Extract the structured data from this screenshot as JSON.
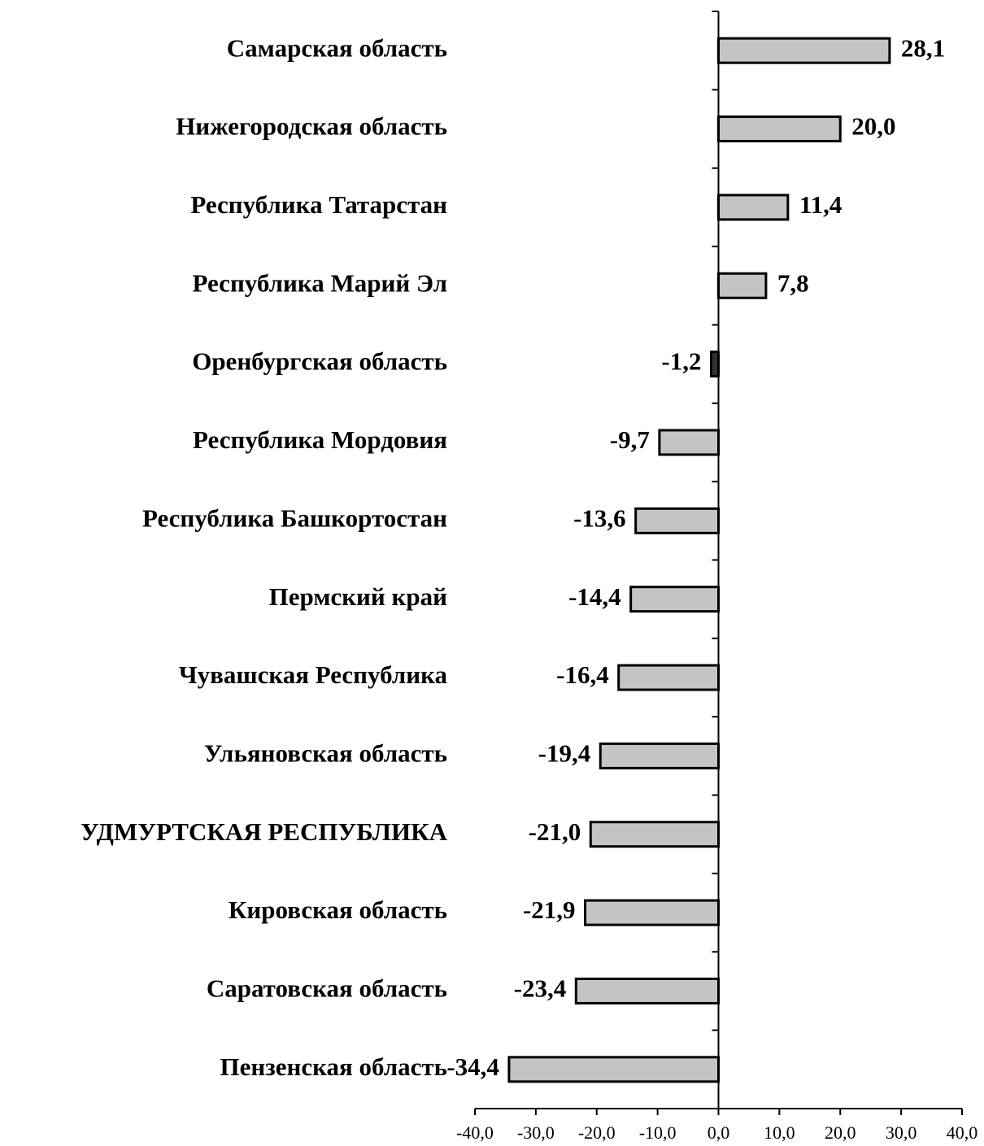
{
  "chart_data": {
    "type": "hbar",
    "categories": [
      "Самарская область",
      "Нижегородская область",
      "Республика Татарстан",
      "Республика Марий Эл",
      "Оренбургская область",
      "Республика Мордовия",
      "Республика Башкортостан",
      "Пермский край",
      "Чувашская Республика",
      "Ульяновская область",
      "УДМУРТСКАЯ РЕСПУБЛИКА",
      "Кировская область",
      "Саратовская область",
      "Пензенская область"
    ],
    "values": [
      28.1,
      20.0,
      11.4,
      7.8,
      -1.2,
      -9.7,
      -13.6,
      -14.4,
      -16.4,
      -19.4,
      -21.0,
      -21.9,
      -23.4,
      -34.4
    ],
    "value_labels": [
      "28,1",
      "20,0",
      "11,4",
      "7,8",
      "-1,2",
      "-9,7",
      "-13,6",
      "-14,4",
      "-16,4",
      "-19,4",
      "-21,0",
      "-21,9",
      "-23,4",
      "-34,4"
    ],
    "color": "#c4c4c4",
    "xlim": [
      -40,
      40
    ],
    "xticks": [
      {
        "value": -40,
        "label": "-40,0"
      },
      {
        "value": -30,
        "label": "-30,0"
      },
      {
        "value": -20,
        "label": "-20,0"
      },
      {
        "value": -10,
        "label": "-10,0"
      },
      {
        "value": 0,
        "label": "0,0"
      },
      {
        "value": 10,
        "label": "10,0"
      },
      {
        "value": 20,
        "label": "20,0"
      },
      {
        "value": 30,
        "label": "30,0"
      },
      {
        "value": 40,
        "label": "40,0"
      }
    ]
  }
}
